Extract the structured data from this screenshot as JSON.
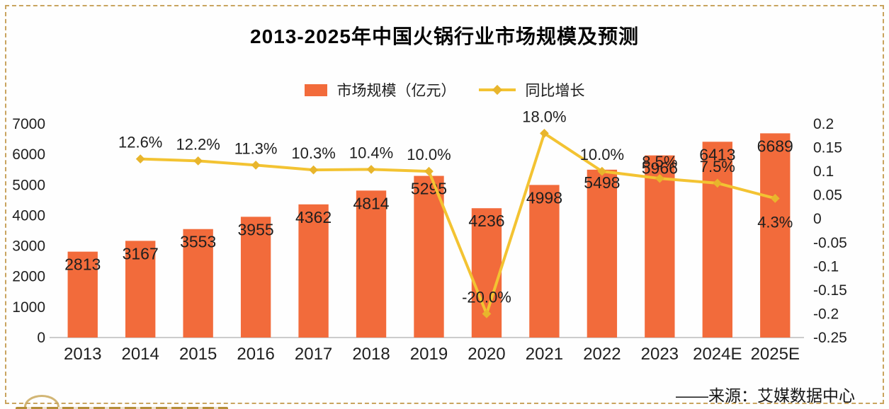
{
  "title": "2013-2025年中国火锅行业市场规模及预测",
  "legend": [
    {
      "label": "市场规模（亿元）",
      "type": "bar"
    },
    {
      "label": "同比增长",
      "type": "line"
    }
  ],
  "source_note": "——来源：艾媒数据中心",
  "colors": {
    "bar": "#f26b3b",
    "line": "#f3c332",
    "marker": "#e8b52c",
    "axis_line": "#9b9b9b",
    "text": "#1f1f1f",
    "frame_dash": "#c9a45f"
  },
  "chart_data": {
    "type": "bar+line combo",
    "title": "2013-2025年中国火锅行业市场规模及预测",
    "categories": [
      "2013",
      "2014",
      "2015",
      "2016",
      "2017",
      "2018",
      "2019",
      "2020",
      "2021",
      "2022",
      "2023",
      "2024E",
      "2025E"
    ],
    "grid": "off",
    "legend_position": "top-center",
    "series": [
      {
        "name": "市场规模（亿元）",
        "type": "bar",
        "axis": "left",
        "values": [
          2813,
          3167,
          3553,
          3955,
          4362,
          4814,
          5295,
          4236,
          4998,
          5498,
          5966,
          6413,
          6689
        ],
        "labels": [
          "2813",
          "3167",
          "3553",
          "3955",
          "4362",
          "4814",
          "5295",
          "4236",
          "4998",
          "5498",
          "5966",
          "6413",
          "6689"
        ]
      },
      {
        "name": "同比增长",
        "type": "line",
        "axis": "right",
        "points": [
          {
            "category": "2014",
            "value": 0.126,
            "label": "12.6%",
            "label_pos": "above"
          },
          {
            "category": "2015",
            "value": 0.122,
            "label": "12.2%",
            "label_pos": "above"
          },
          {
            "category": "2016",
            "value": 0.113,
            "label": "11.3%",
            "label_pos": "above"
          },
          {
            "category": "2017",
            "value": 0.103,
            "label": "10.3%",
            "label_pos": "above"
          },
          {
            "category": "2018",
            "value": 0.104,
            "label": "10.4%",
            "label_pos": "above"
          },
          {
            "category": "2019",
            "value": 0.1,
            "label": "10.0%",
            "label_pos": "above"
          },
          {
            "category": "2020",
            "value": -0.2,
            "label": "-20.0%",
            "label_pos": "above"
          },
          {
            "category": "2021",
            "value": 0.18,
            "label": "18.0%",
            "label_pos": "above"
          },
          {
            "category": "2022",
            "value": 0.1,
            "label": "10.0%",
            "label_pos": "above"
          },
          {
            "category": "2023",
            "value": 0.085,
            "label": "8.5%",
            "label_pos": "above"
          },
          {
            "category": "2024E",
            "value": 0.075,
            "label": "7.5%",
            "label_pos": "above"
          },
          {
            "category": "2025E",
            "value": 0.043,
            "label": "4.3%",
            "label_pos": "below"
          }
        ]
      }
    ],
    "left_axis": {
      "range": [
        0,
        7000
      ],
      "ticks": [
        {
          "value": 7000,
          "label": "7000"
        },
        {
          "value": 6000,
          "label": "6000"
        },
        {
          "value": 5000,
          "label": "5000"
        },
        {
          "value": 4000,
          "label": "4000"
        },
        {
          "value": 3000,
          "label": "3000"
        },
        {
          "value": 2000,
          "label": "2000"
        },
        {
          "value": 1000,
          "label": "1000"
        },
        {
          "value": 0,
          "label": "0"
        }
      ]
    },
    "right_axis": {
      "range": [
        -0.25,
        0.2
      ],
      "ticks": [
        {
          "value": 0.2,
          "label": "0.2"
        },
        {
          "value": 0.15,
          "label": "0.15"
        },
        {
          "value": 0.1,
          "label": "0.1"
        },
        {
          "value": 0.05,
          "label": "0.05"
        },
        {
          "value": 0,
          "label": "0"
        },
        {
          "value": -0.05,
          "label": "-0.05"
        },
        {
          "value": -0.1,
          "label": "-0.1"
        },
        {
          "value": -0.15,
          "label": "-0.15"
        },
        {
          "value": -0.2,
          "label": "-0.2"
        },
        {
          "value": -0.25,
          "label": "-0.25"
        }
      ]
    }
  }
}
